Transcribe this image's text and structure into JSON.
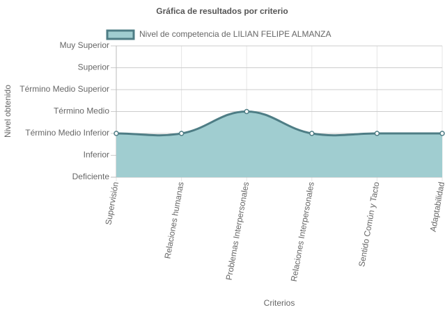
{
  "chart_data": {
    "type": "line",
    "title": "Gráfica de resultados por criterio",
    "x_label": "Criterios",
    "y_label": "Nivel obtenido",
    "categories": [
      "Supervisión",
      "Relaciones humanas",
      "Problemas Interpersonales",
      "Relaciones Interpersonales",
      "Sentido Común y Tacto",
      "Adaptabilidad"
    ],
    "series": [
      {
        "name": "Nivel de competencia de LILIAN FELIPE ALMANZA",
        "color": "#4e7d85",
        "fill": "#a0cdd0",
        "values": [
          2,
          2,
          3,
          2,
          2,
          2
        ]
      }
    ],
    "ylim": [
      0,
      6
    ],
    "yticks": [
      {
        "value": 0,
        "label": "Deficiente"
      },
      {
        "value": 1,
        "label": "Inferior"
      },
      {
        "value": 2,
        "label": "Término Medio Inferior"
      },
      {
        "value": 3,
        "label": "Término Medio"
      },
      {
        "value": 4,
        "label": "Término Medio Superior"
      },
      {
        "value": 5,
        "label": "Superior"
      },
      {
        "value": 6,
        "label": "Muy Superior"
      }
    ],
    "grid": true,
    "legend": "top"
  }
}
